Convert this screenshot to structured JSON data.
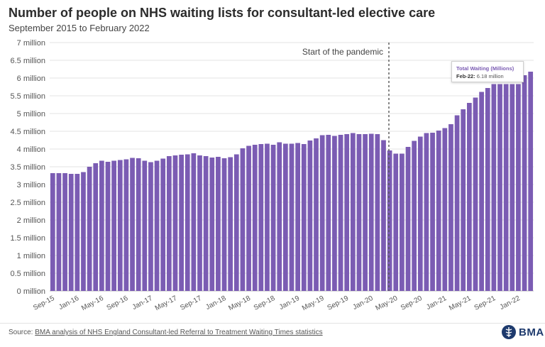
{
  "header": {
    "title": "Number of people on NHS waiting lists for consultant-led elective care",
    "subtitle": "September 2015 to February 2022"
  },
  "chart_data": {
    "type": "bar",
    "title": "Number of people on NHS waiting lists for consultant-led elective care",
    "subtitle": "September 2015 to February 2022",
    "series": [
      {
        "name": "Total Waiting (Millions)",
        "color": "#7b5cb3",
        "values": [
          3.32,
          3.32,
          3.32,
          3.3,
          3.3,
          3.35,
          3.5,
          3.6,
          3.67,
          3.64,
          3.67,
          3.69,
          3.71,
          3.75,
          3.74,
          3.67,
          3.63,
          3.67,
          3.73,
          3.8,
          3.82,
          3.84,
          3.85,
          3.88,
          3.82,
          3.8,
          3.76,
          3.78,
          3.74,
          3.77,
          3.85,
          4.02,
          4.09,
          4.12,
          4.14,
          4.15,
          4.12,
          4.19,
          4.15,
          4.15,
          4.17,
          4.14,
          4.24,
          4.3,
          4.39,
          4.4,
          4.37,
          4.4,
          4.42,
          4.45,
          4.42,
          4.42,
          4.43,
          4.42,
          4.25,
          3.96,
          3.87,
          3.87,
          4.06,
          4.23,
          4.35,
          4.45,
          4.46,
          4.52,
          4.59,
          4.7,
          4.95,
          5.12,
          5.3,
          5.45,
          5.61,
          5.72,
          5.83,
          5.83,
          5.83,
          5.83,
          5.83,
          6.08,
          6.18
        ]
      }
    ],
    "x_tick_labels": [
      "Sep-15",
      "Jan-16",
      "May-16",
      "Sep-16",
      "Jan-17",
      "May-17",
      "Sep-17",
      "Jan-18",
      "May-18",
      "Sep-18",
      "Jan-19",
      "May-19",
      "Sep-19",
      "Jan-20",
      "May-20",
      "Sep-20",
      "Jan-21",
      "May-21",
      "Sep-21",
      "Jan-22"
    ],
    "x_tick_every": 4,
    "y_ticks": [
      0,
      0.5,
      1,
      1.5,
      2,
      2.5,
      3,
      3.5,
      4,
      4.5,
      5,
      5.5,
      6,
      6.5,
      7
    ],
    "y_tick_labels": [
      "0 million",
      "0.5 million",
      "1 million",
      "1.5 million",
      "2 million",
      "2.5 million",
      "3 million",
      "3.5 million",
      "4 million",
      "4.5 million",
      "5 million",
      "5.5 million",
      "6 million",
      "6.5 million",
      "7 million"
    ],
    "ylim": [
      0,
      7
    ],
    "xlabel": "",
    "ylabel": "",
    "grid": true,
    "annotation": {
      "text": "Start of the pandemic",
      "after_category": "Feb-20",
      "style": "dashed-vertical-line"
    },
    "tooltip": {
      "series_name": "Total Waiting (Millions)",
      "point_label": "Feb-22:",
      "point_value": "6.18 million"
    }
  },
  "footer": {
    "source_prefix": "Source:",
    "source_link": "BMA analysis of NHS England Consultant-led Referral to Treatment Waiting Times statistics",
    "logo_text": "BMA"
  },
  "colors": {
    "bar": "#7b5cb3",
    "grid": "#e3e3e3",
    "brand": "#1e3a6d"
  }
}
